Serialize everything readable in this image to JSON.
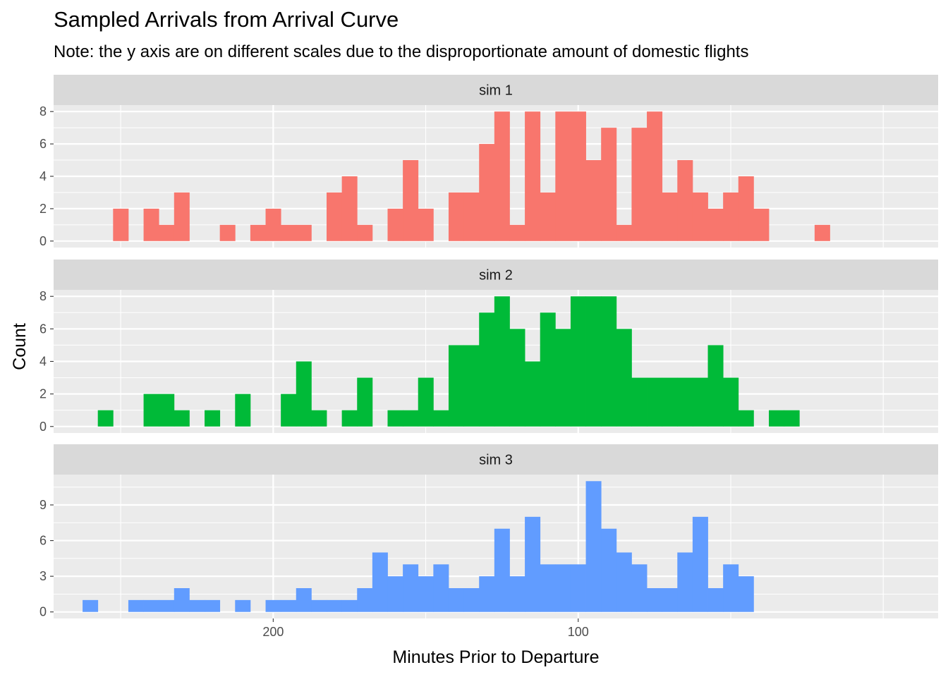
{
  "chart_data": {
    "type": "bar",
    "title": "Sampled Arrivals from Arrival Curve",
    "subtitle": "Note: the y axis are on different scales due to the disproportionate amount of domestic flights",
    "xlabel": "Minutes Prior to Departure",
    "ylabel": "Count",
    "x_axis_reversed": true,
    "xlim": [
      272,
      -18
    ],
    "x_ticks": [
      200,
      100
    ],
    "bin_width": 5,
    "grid": true,
    "colors": {
      "sim 1": "#F8766D",
      "sim 2": "#00BA38",
      "sim 3": "#619CFF",
      "panel_background": "#EBEBEB",
      "strip_background": "#D9D9D9",
      "grid": "#FFFFFF"
    },
    "panels": [
      {
        "name": "sim 1",
        "y_ticks": [
          0,
          2,
          4,
          6,
          8
        ],
        "ylim": [
          -0.4,
          8.4
        ],
        "bins": [
          [
            250,
            2
          ],
          [
            240,
            2
          ],
          [
            235,
            1
          ],
          [
            230,
            3
          ],
          [
            215,
            1
          ],
          [
            205,
            1
          ],
          [
            200,
            2
          ],
          [
            195,
            1
          ],
          [
            190,
            1
          ],
          [
            180,
            3
          ],
          [
            175,
            4
          ],
          [
            170,
            1
          ],
          [
            160,
            2
          ],
          [
            155,
            5
          ],
          [
            150,
            2
          ],
          [
            140,
            3
          ],
          [
            135,
            3
          ],
          [
            130,
            6
          ],
          [
            125,
            8
          ],
          [
            120,
            1
          ],
          [
            115,
            8
          ],
          [
            110,
            3
          ],
          [
            105,
            8
          ],
          [
            100,
            8
          ],
          [
            95,
            5
          ],
          [
            90,
            7
          ],
          [
            85,
            1
          ],
          [
            80,
            7
          ],
          [
            75,
            8
          ],
          [
            70,
            3
          ],
          [
            65,
            5
          ],
          [
            60,
            3
          ],
          [
            55,
            2
          ],
          [
            50,
            3
          ],
          [
            45,
            4
          ],
          [
            40,
            2
          ],
          [
            20,
            1
          ]
        ]
      },
      {
        "name": "sim 2",
        "y_ticks": [
          0,
          2,
          4,
          6,
          8
        ],
        "ylim": [
          -0.4,
          8.4
        ],
        "bins": [
          [
            255,
            1
          ],
          [
            240,
            2
          ],
          [
            235,
            2
          ],
          [
            230,
            1
          ],
          [
            220,
            1
          ],
          [
            210,
            2
          ],
          [
            195,
            2
          ],
          [
            190,
            4
          ],
          [
            185,
            1
          ],
          [
            175,
            1
          ],
          [
            170,
            3
          ],
          [
            160,
            1
          ],
          [
            155,
            1
          ],
          [
            150,
            3
          ],
          [
            145,
            1
          ],
          [
            140,
            5
          ],
          [
            135,
            5
          ],
          [
            130,
            7
          ],
          [
            125,
            8
          ],
          [
            120,
            6
          ],
          [
            115,
            4
          ],
          [
            110,
            7
          ],
          [
            105,
            6
          ],
          [
            100,
            8
          ],
          [
            95,
            8
          ],
          [
            90,
            8
          ],
          [
            85,
            6
          ],
          [
            80,
            3
          ],
          [
            75,
            3
          ],
          [
            70,
            3
          ],
          [
            65,
            3
          ],
          [
            60,
            3
          ],
          [
            55,
            5
          ],
          [
            50,
            3
          ],
          [
            45,
            1
          ],
          [
            35,
            1
          ],
          [
            30,
            1
          ]
        ]
      },
      {
        "name": "sim 3",
        "y_ticks": [
          0,
          3,
          6,
          9
        ],
        "ylim": [
          -0.55,
          11.55
        ],
        "bins": [
          [
            260,
            1
          ],
          [
            245,
            1
          ],
          [
            240,
            1
          ],
          [
            235,
            1
          ],
          [
            230,
            2
          ],
          [
            225,
            1
          ],
          [
            220,
            1
          ],
          [
            210,
            1
          ],
          [
            200,
            1
          ],
          [
            195,
            1
          ],
          [
            190,
            2
          ],
          [
            185,
            1
          ],
          [
            180,
            1
          ],
          [
            175,
            1
          ],
          [
            170,
            2
          ],
          [
            165,
            5
          ],
          [
            160,
            3
          ],
          [
            155,
            4
          ],
          [
            150,
            3
          ],
          [
            145,
            4
          ],
          [
            140,
            2
          ],
          [
            135,
            2
          ],
          [
            130,
            3
          ],
          [
            125,
            7
          ],
          [
            120,
            3
          ],
          [
            115,
            8
          ],
          [
            110,
            4
          ],
          [
            105,
            4
          ],
          [
            100,
            4
          ],
          [
            95,
            11
          ],
          [
            90,
            7
          ],
          [
            85,
            5
          ],
          [
            80,
            4
          ],
          [
            75,
            2
          ],
          [
            70,
            2
          ],
          [
            65,
            5
          ],
          [
            60,
            8
          ],
          [
            55,
            2
          ],
          [
            50,
            4
          ],
          [
            45,
            3
          ]
        ]
      }
    ]
  }
}
